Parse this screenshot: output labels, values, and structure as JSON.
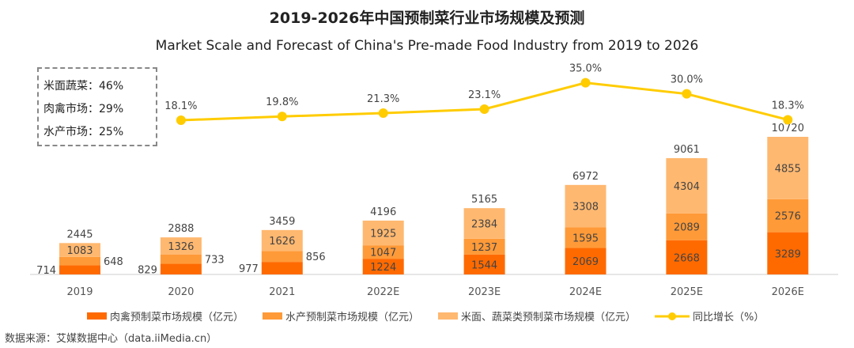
{
  "chart_data": {
    "type": "bar",
    "stacked": true,
    "title": "2019-2026年中国预制菜行业市场规模及预测",
    "subtitle": "Market Scale and Forecast of China's Pre-made Food Industry from 2019 to 2026",
    "categories": [
      "2019",
      "2020",
      "2021",
      "2022E",
      "2023E",
      "2024E",
      "2025E",
      "2026E"
    ],
    "series": [
      {
        "name": "肉禽预制菜市场规模（亿元）",
        "color": "#FF6A00",
        "values": [
          714,
          829,
          977,
          1224,
          1544,
          2069,
          2668,
          3289
        ]
      },
      {
        "name": "水产预制菜市场规模（亿元）",
        "color": "#FF9A38",
        "values": [
          648,
          733,
          856,
          1047,
          1237,
          1595,
          2089,
          2576
        ]
      },
      {
        "name": "米面、蔬菜类预制菜市场规模（亿元）",
        "color": "#FFB870",
        "values": [
          1083,
          1326,
          1626,
          1925,
          2384,
          3308,
          4304,
          4855
        ]
      }
    ],
    "totals": [
      2445,
      2888,
      3459,
      4196,
      5165,
      6972,
      9061,
      10720
    ],
    "line": {
      "name": "同比增长（%）",
      "color": "#FFCC00",
      "categories": [
        "2020",
        "2021",
        "2022E",
        "2023E",
        "2024E",
        "2025E",
        "2026E"
      ],
      "values": [
        18.1,
        19.8,
        21.3,
        23.1,
        35.0,
        30.0,
        18.3
      ],
      "labels": [
        "18.1%",
        "19.8%",
        "21.3%",
        "23.1%",
        "35.0%",
        "30.0%",
        "18.3%"
      ]
    },
    "legend_position": "bottom",
    "grid": false
  },
  "note": [
    "米面蔬菜：46%",
    "肉禽市场：29%",
    "水产市场：25%"
  ],
  "source": "数据来源：艾媒数据中心（data.iiMedia.cn）"
}
